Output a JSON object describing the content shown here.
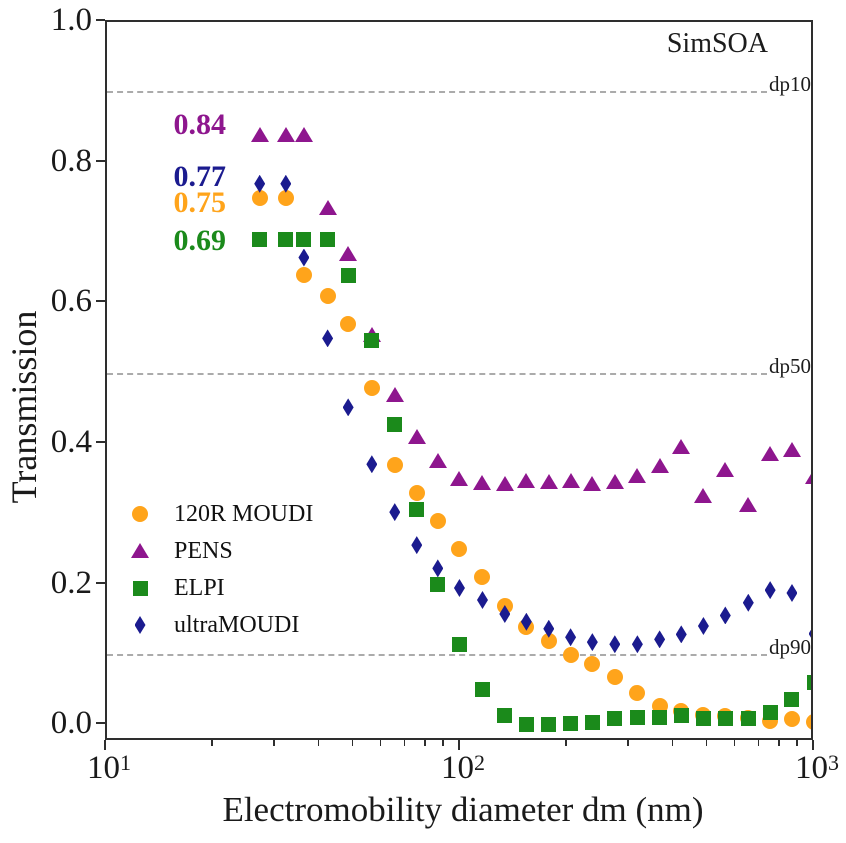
{
  "corner_label": "SimSOA",
  "axes": {
    "xlabel": "Electromobility diameter dm (nm)",
    "ylabel": "Transmission",
    "x_major_ticks": [
      {
        "value": 10,
        "base": "10",
        "exp": "1"
      },
      {
        "value": 100,
        "base": "10",
        "exp": "2"
      },
      {
        "value": 1000,
        "base": "10",
        "exp": "3"
      }
    ],
    "x_minor_ticks": [
      20,
      30,
      40,
      50,
      60,
      70,
      80,
      90,
      200,
      300,
      400,
      500,
      600,
      700,
      800,
      900
    ],
    "y_ticks": [
      {
        "value": 0.0,
        "label": "0.0"
      },
      {
        "value": 0.2,
        "label": "0.2"
      },
      {
        "value": 0.4,
        "label": "0.4"
      },
      {
        "value": 0.6,
        "label": "0.6"
      },
      {
        "value": 0.8,
        "label": "0.8"
      },
      {
        "value": 1.0,
        "label": "1.0"
      }
    ]
  },
  "reference_lines": [
    {
      "label": "dp10",
      "y": 0.9
    },
    {
      "label": "dp50",
      "y": 0.5
    },
    {
      "label": "dp90",
      "y": 0.1
    }
  ],
  "annotations": [
    {
      "text": "0.84",
      "color": "#8E168E",
      "series": "PENS"
    },
    {
      "text": "0.77",
      "color": "#1B1B8F",
      "series": "ultraMOUDI"
    },
    {
      "text": "0.75",
      "color": "#FFA41B",
      "series": "120R MOUDI"
    },
    {
      "text": "0.69",
      "color": "#1B8A1B",
      "series": "ELPI"
    }
  ],
  "legend": [
    {
      "label": "120R MOUDI",
      "marker": "circle",
      "color": "#FFA41B"
    },
    {
      "label": "PENS",
      "marker": "triangle",
      "color": "#8E168E"
    },
    {
      "label": "ELPI",
      "marker": "square",
      "color": "#1B8A1B"
    },
    {
      "label": "ultraMOUDI",
      "marker": "diamond",
      "color": "#1B1B8F"
    }
  ],
  "chart_data": {
    "type": "scatter",
    "title": "SimSOA",
    "xlabel": "Electromobility diameter dm (nm)",
    "ylabel": "Transmission",
    "xscale": "log",
    "xlim": [
      10,
      1000
    ],
    "ylim": [
      -0.024,
      1.0
    ],
    "grid": false,
    "legend_position": "center-left",
    "x": [
      27,
      32,
      36,
      42,
      48,
      56,
      65,
      75,
      86,
      99,
      115,
      133,
      153,
      177,
      204,
      235,
      272,
      315,
      364,
      419,
      484,
      558,
      648,
      747,
      861,
      994
    ],
    "series": [
      {
        "name": "PENS",
        "marker": "triangle",
        "color": "#8E168E",
        "values": [
          0.84,
          0.84,
          0.84,
          0.735,
          0.67,
          0.555,
          0.47,
          0.41,
          0.375,
          0.35,
          0.344,
          0.343,
          0.347,
          0.346,
          0.347,
          0.343,
          0.346,
          0.354,
          0.368,
          0.395,
          0.326,
          0.363,
          0.313,
          0.385,
          0.391,
          0.353
        ]
      },
      {
        "name": "120R MOUDI",
        "marker": "circle",
        "color": "#FFA41B",
        "values": [
          0.75,
          0.75,
          0.64,
          0.61,
          0.57,
          0.48,
          0.37,
          0.33,
          0.29,
          0.25,
          0.21,
          0.17,
          0.14,
          0.12,
          0.1,
          0.087,
          0.068,
          0.046,
          0.027,
          0.02,
          0.014,
          0.013,
          0.01,
          0.006,
          0.009,
          0.004
        ]
      },
      {
        "name": "ELPI",
        "marker": "square",
        "color": "#1B8A1B",
        "values": [
          0.69,
          0.69,
          0.69,
          0.69,
          0.64,
          0.547,
          0.427,
          0.307,
          0.2,
          0.115,
          0.051,
          0.013,
          0.001,
          0.001,
          0.002,
          0.004,
          0.009,
          0.011,
          0.011,
          0.013,
          0.009,
          0.009,
          0.01,
          0.018,
          0.036,
          0.061
        ]
      },
      {
        "name": "ultraMOUDI",
        "marker": "diamond",
        "color": "#1B1B8F",
        "values": [
          0.77,
          0.77,
          0.665,
          0.55,
          0.452,
          0.371,
          0.303,
          0.256,
          0.223,
          0.195,
          0.178,
          0.158,
          0.147,
          0.137,
          0.125,
          0.118,
          0.115,
          0.115,
          0.122,
          0.129,
          0.141,
          0.156,
          0.174,
          0.192,
          0.188,
          0.13
        ]
      }
    ],
    "reference_lines": [
      {
        "label": "dp10",
        "y": 0.9
      },
      {
        "label": "dp50",
        "y": 0.5
      },
      {
        "label": "dp90",
        "y": 0.1
      }
    ],
    "annotations": [
      {
        "text": "0.84",
        "series": "PENS"
      },
      {
        "text": "0.77",
        "series": "ultraMOUDI"
      },
      {
        "text": "0.75",
        "series": "120R MOUDI"
      },
      {
        "text": "0.69",
        "series": "ELPI"
      }
    ]
  }
}
